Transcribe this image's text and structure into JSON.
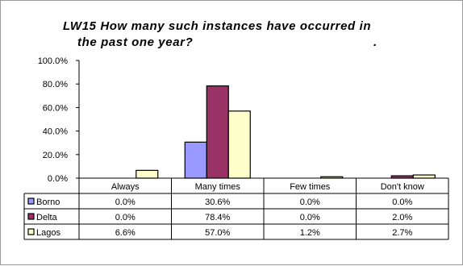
{
  "chart_data": {
    "type": "bar",
    "title_line1": "LW15 How many such instances have occurred in",
    "title_line2": "the past one year?",
    "title_mark": ".",
    "categories": [
      "Always",
      "Many times",
      "Few times",
      "Don't know"
    ],
    "series": [
      {
        "name": "Borno",
        "color": "#9999ff",
        "values": [
          0.0,
          30.6,
          0.0,
          0.0
        ],
        "labels": [
          "0.0%",
          "30.6%",
          "0.0%",
          "0.0%"
        ]
      },
      {
        "name": "Delta",
        "color": "#993366",
        "values": [
          0.0,
          78.4,
          0.0,
          2.0
        ],
        "labels": [
          "0.0%",
          "78.4%",
          "0.0%",
          "2.0%"
        ]
      },
      {
        "name": "Lagos",
        "color": "#ffffcc",
        "values": [
          6.6,
          57.0,
          1.2,
          2.7
        ],
        "labels": [
          "6.6%",
          "57.0%",
          "1.2%",
          "2.7%"
        ]
      }
    ],
    "y_ticks": [
      "100.0%",
      "80.0%",
      "60.0%",
      "40.0%",
      "20.0%",
      "0.0%"
    ],
    "ylim": [
      0,
      100
    ],
    "legend": "data-table"
  }
}
